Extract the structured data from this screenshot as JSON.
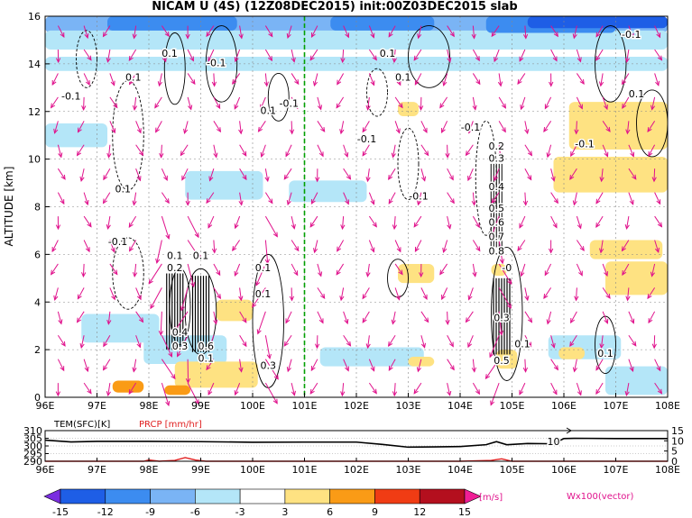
{
  "chart_data": [
    {
      "type": "heatmap",
      "title": "NICAM U (4S) (12Z08DEC2015) init:00Z03DEC2015 slab",
      "ylabel": "ALTITUDE [km]",
      "xlim": [
        96,
        108
      ],
      "ylim": [
        0,
        16
      ],
      "x_ticks": [
        "96E",
        "97E",
        "98E",
        "99E",
        "100E",
        "101E",
        "102E",
        "103E",
        "104E",
        "105E",
        "106E",
        "107E",
        "108E"
      ],
      "y_ticks": [
        "0",
        "2",
        "4",
        "6",
        "8",
        "10",
        "12",
        "14",
        "16"
      ],
      "grid": true,
      "vertical_marker_x": 101,
      "contour_labels": [
        {
          "text": "-0.1",
          "x": 107.3,
          "y": 15.1
        },
        {
          "text": "0.1",
          "x": 97.7,
          "y": 13.3
        },
        {
          "text": "-0.1",
          "x": 96.5,
          "y": 12.5
        },
        {
          "text": "0.1",
          "x": 98.4,
          "y": 14.3
        },
        {
          "text": "-0.1",
          "x": 99.3,
          "y": 13.9
        },
        {
          "text": "0.1",
          "x": 100.3,
          "y": 11.9
        },
        {
          "text": "-0.1",
          "x": 100.7,
          "y": 12.2
        },
        {
          "text": "0.1",
          "x": 102.6,
          "y": 14.3
        },
        {
          "text": "0.1",
          "x": 102.9,
          "y": 13.3
        },
        {
          "text": "-0.1",
          "x": 102.2,
          "y": 10.7
        },
        {
          "text": "-0.1",
          "x": 104.2,
          "y": 11.2
        },
        {
          "text": "0.2",
          "x": 104.7,
          "y": 10.4
        },
        {
          "text": "0.3",
          "x": 104.7,
          "y": 9.9
        },
        {
          "text": "0.4",
          "x": 104.7,
          "y": 8.7
        },
        {
          "text": "-0.1",
          "x": 103.2,
          "y": 8.3
        },
        {
          "text": "0.5",
          "x": 104.7,
          "y": 7.8
        },
        {
          "text": "0.6",
          "x": 104.7,
          "y": 7.2
        },
        {
          "text": "0.7",
          "x": 104.7,
          "y": 6.6
        },
        {
          "text": "0.8",
          "x": 104.7,
          "y": 6.0
        },
        {
          "text": "-0.1",
          "x": 106.4,
          "y": 10.5
        },
        {
          "text": "0.1",
          "x": 107.4,
          "y": 12.6
        },
        {
          "text": "0.1",
          "x": 97.5,
          "y": 8.6
        },
        {
          "text": "-0.1",
          "x": 97.4,
          "y": 6.4
        },
        {
          "text": "0.1",
          "x": 98.5,
          "y": 5.8
        },
        {
          "text": "0.2",
          "x": 98.5,
          "y": 5.3
        },
        {
          "text": "0.1",
          "x": 99.0,
          "y": 5.8
        },
        {
          "text": "0.1",
          "x": 100.2,
          "y": 5.3
        },
        {
          "text": "0.1",
          "x": 100.2,
          "y": 4.2
        },
        {
          "text": "-0",
          "x": 104.9,
          "y": 5.3
        },
        {
          "text": "0.4",
          "x": 98.6,
          "y": 2.6
        },
        {
          "text": "0.3",
          "x": 98.6,
          "y": 2.0
        },
        {
          "text": "0.6",
          "x": 99.1,
          "y": 2.0
        },
        {
          "text": "0.3",
          "x": 100.3,
          "y": 1.2
        },
        {
          "text": "0.1",
          "x": 99.1,
          "y": 1.5
        },
        {
          "text": "0.3",
          "x": 104.8,
          "y": 3.2
        },
        {
          "text": "0.5",
          "x": 104.8,
          "y": 1.4
        },
        {
          "text": "0.1",
          "x": 105.2,
          "y": 2.1
        },
        {
          "text": "0.1",
          "x": 106.8,
          "y": 1.7
        }
      ]
    },
    {
      "type": "line",
      "xlim": [
        96,
        108
      ],
      "x_ticks": [
        "96E",
        "97E",
        "98E",
        "99E",
        "100E",
        "101E",
        "102E",
        "103E",
        "104E",
        "105E",
        "106E",
        "107E",
        "108E"
      ],
      "left_axis": {
        "label": "TEM(SFC)[K]",
        "range": [
          290,
          310
        ],
        "ticks": [
          "310",
          "305",
          "300",
          "295",
          "290"
        ]
      },
      "right_axis": {
        "label": "PRCP [mm/hr]",
        "range": [
          0,
          15
        ],
        "ticks": [
          "15",
          "10",
          "5",
          "0"
        ]
      },
      "series": [
        {
          "name": "TEM(SFC)[K]",
          "color": "#000000",
          "x": [
            96,
            96.5,
            97,
            98,
            99,
            100,
            101,
            102,
            102.5,
            103,
            103.5,
            104,
            104.5,
            104.7,
            104.9,
            105.3,
            105.8,
            106,
            106.2,
            107,
            108
          ],
          "y": [
            303.8,
            302.6,
            303.0,
            303.0,
            302.8,
            302.4,
            302.5,
            302.5,
            301.0,
            299.2,
            299.4,
            299.6,
            300.8,
            302.8,
            300.8,
            301.6,
            301.4,
            304.8,
            305.0,
            304.8,
            304.8
          ]
        },
        {
          "name": "PRCP [mm/hr]",
          "color": "#e02020",
          "x": [
            96,
            97.9,
            98.0,
            98.2,
            98.5,
            98.7,
            98.9,
            99.1,
            100,
            101,
            102,
            103,
            104,
            104.6,
            104.8,
            105.0,
            108
          ],
          "y": [
            0,
            0,
            0.6,
            0,
            0.4,
            1.8,
            0.6,
            0,
            0,
            0,
            0,
            0,
            0,
            0.4,
            1.2,
            0,
            0
          ]
        }
      ],
      "annotations": [
        {
          "text": "10",
          "x": 105.8,
          "y": 303
        }
      ]
    }
  ],
  "colorbar": {
    "ticks": [
      "-15",
      "-12",
      "-9",
      "-6",
      "-3",
      "3",
      "6",
      "9",
      "12",
      "15"
    ],
    "unit": "[m/s]",
    "colors": [
      "#7a2ee0",
      "#1e5ee6",
      "#3c8cf0",
      "#7ab4f5",
      "#b4e6f8",
      "#ffffff",
      "#fee282",
      "#fa9b16",
      "#f03c14",
      "#b40f1e",
      "#f01e96"
    ]
  },
  "vector_legend": "Wx100(vector)",
  "colors": {
    "wind_vector": "#e0128c",
    "marker_line": "#00a000",
    "prcp": "#e02020"
  }
}
